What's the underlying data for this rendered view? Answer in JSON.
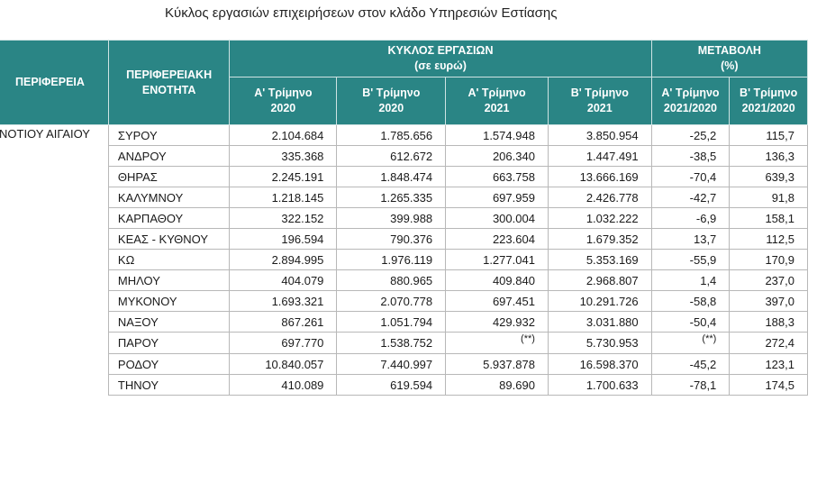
{
  "title": "Κύκλος εργασιών επιχειρήσεων στον κλάδο Υπηρεσιών Εστίασης",
  "headers": {
    "region": "ΠΕΡΙΦΕΡΕΙΑ",
    "unit_line1": "ΠΕΡΙΦΕΡΕΙΑΚΗ",
    "unit_line2": "ΕΝΟΤΗΤΑ",
    "turnover_line1": "ΚΥΚΛΟΣ ΕΡΓΑΣΙΩΝ",
    "turnover_line2": "(σε ευρώ)",
    "change_line1": "ΜΕΤΑΒΟΛΗ",
    "change_line2": "(%)",
    "columns": [
      {
        "l1": "Α' Τρίμηνο",
        "l2": "2020"
      },
      {
        "l1": "Β' Τρίμηνο",
        "l2": "2020"
      },
      {
        "l1": "Α' Τρίμηνο",
        "l2": "2021"
      },
      {
        "l1": "Β' Τρίμηνο",
        "l2": "2021"
      },
      {
        "l1": "Α' Τρίμηνο",
        "l2": "2021/2020"
      },
      {
        "l1": "Β' Τρίμηνο",
        "l2": "2021/2020"
      }
    ]
  },
  "region_name": "ΝΟΤΙΟΥ ΑΙΓΑΙΟΥ",
  "rows": [
    {
      "unit": "ΣΥΡΟΥ",
      "c": [
        "2.104.684",
        "1.785.656",
        "1.574.948",
        "3.850.954",
        "-25,2",
        "115,7"
      ]
    },
    {
      "unit": "ΑΝΔΡΟΥ",
      "c": [
        "335.368",
        "612.672",
        "206.340",
        "1.447.491",
        "-38,5",
        "136,3"
      ]
    },
    {
      "unit": "ΘΗΡΑΣ",
      "c": [
        "2.245.191",
        "1.848.474",
        "663.758",
        "13.666.169",
        "-70,4",
        "639,3"
      ]
    },
    {
      "unit": "ΚΑΛΥΜΝΟΥ",
      "c": [
        "1.218.145",
        "1.265.335",
        "697.959",
        "2.426.778",
        "-42,7",
        "91,8"
      ]
    },
    {
      "unit": "ΚΑΡΠΑΘΟΥ",
      "c": [
        "322.152",
        "399.988",
        "300.004",
        "1.032.222",
        "-6,9",
        "158,1"
      ]
    },
    {
      "unit": "ΚΕΑΣ - ΚΥΘΝΟΥ",
      "c": [
        "196.594",
        "790.376",
        "223.604",
        "1.679.352",
        "13,7",
        "112,5"
      ]
    },
    {
      "unit": "ΚΩ",
      "c": [
        "2.894.995",
        "1.976.119",
        "1.277.041",
        "5.353.169",
        "-55,9",
        "170,9"
      ]
    },
    {
      "unit": "ΜΗΛΟΥ",
      "c": [
        "404.079",
        "880.965",
        "409.840",
        "2.968.807",
        "1,4",
        "237,0"
      ]
    },
    {
      "unit": "ΜΥΚΟΝΟΥ",
      "c": [
        "1.693.321",
        "2.070.778",
        "697.451",
        "10.291.726",
        "-58,8",
        "397,0"
      ]
    },
    {
      "unit": "ΝΑΞΟΥ",
      "c": [
        "867.261",
        "1.051.794",
        "429.932",
        "3.031.880",
        "-50,4",
        "188,3"
      ]
    },
    {
      "unit": "ΠΑΡΟΥ",
      "c": [
        "697.770",
        "1.538.752",
        "(**)",
        "5.730.953",
        "(**)",
        "272,4"
      ]
    },
    {
      "unit": "ΡΟΔΟΥ",
      "c": [
        "10.840.057",
        "7.440.997",
        "5.937.878",
        "16.598.370",
        "-45,2",
        "123,1"
      ]
    },
    {
      "unit": "ΤΗΝΟΥ",
      "c": [
        "410.089",
        "619.594",
        "89.690",
        "1.700.633",
        "-78,1",
        "174,5"
      ]
    }
  ]
}
